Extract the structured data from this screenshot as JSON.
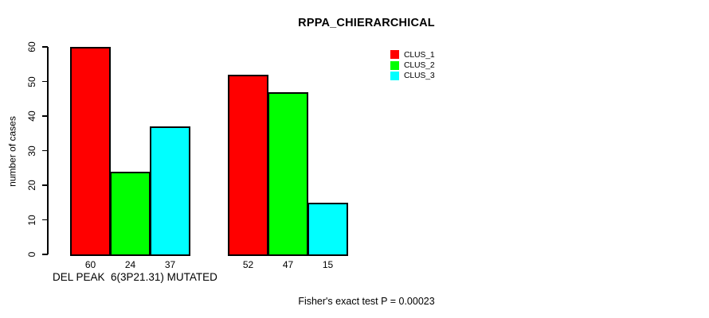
{
  "chart_data": {
    "type": "bar",
    "title": "RPPA_CHIERARCHICAL",
    "ylabel": "number of cases",
    "xlabel": "DEL PEAK  6(3P21.31) MUTATED",
    "footnote": "Fisher's exact test P = 0.00023",
    "ylim": [
      0,
      60
    ],
    "yticks": [
      0,
      10,
      20,
      30,
      40,
      50,
      60
    ],
    "categories": [
      "",
      ""
    ],
    "series": [
      {
        "name": "CLUS_1",
        "color": "#ff0000",
        "values": [
          60,
          52
        ]
      },
      {
        "name": "CLUS_2",
        "color": "#00ff00",
        "values": [
          24,
          47
        ]
      },
      {
        "name": "CLUS_3",
        "color": "#00ffff",
        "values": [
          37,
          15
        ]
      }
    ],
    "bar_value_labels": [
      [
        60,
        24,
        37
      ],
      [
        52,
        47,
        15
      ]
    ],
    "legend_position": "top-right",
    "grid": false,
    "background": "#ffffff",
    "axis_color": "#000000"
  }
}
